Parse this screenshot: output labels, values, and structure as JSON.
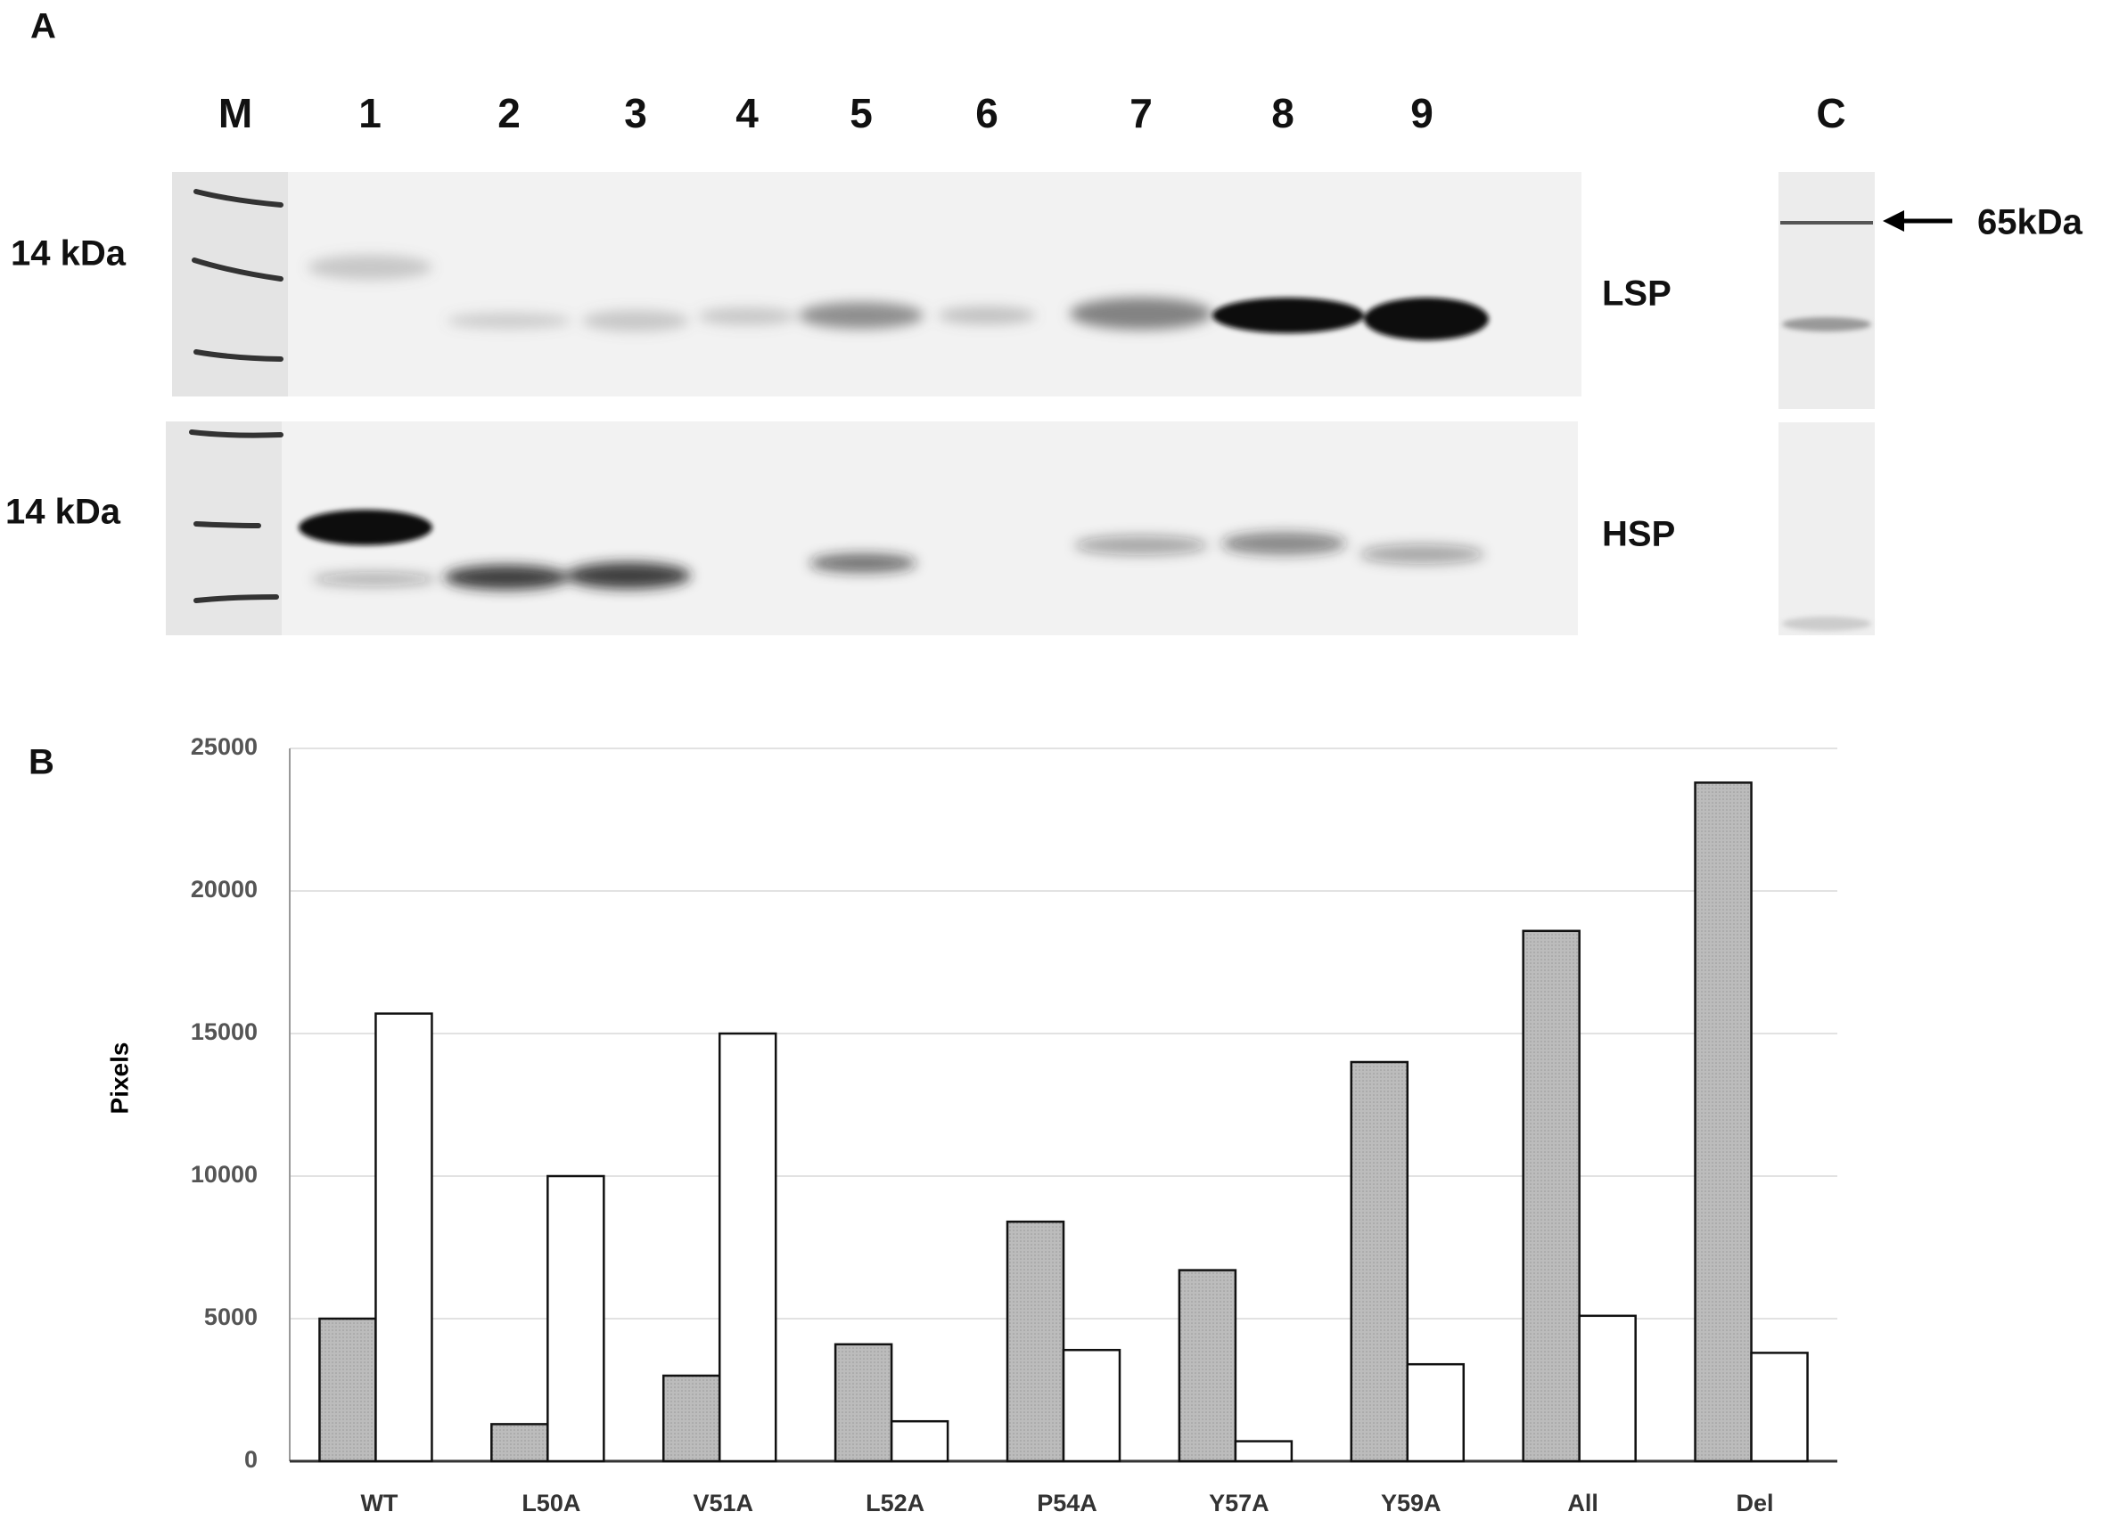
{
  "panel_a": {
    "label": "A",
    "lanes": [
      "M",
      "1",
      "2",
      "3",
      "4",
      "5",
      "6",
      "7",
      "8",
      "9",
      "C"
    ],
    "marker_labels": [
      "14 kDa",
      "14 kDa"
    ],
    "blot_labels": [
      "LSP",
      "HSP"
    ],
    "control_label": "65kDa"
  },
  "chart_data": {
    "type": "bar",
    "panel_label": "B",
    "ylabel": "Pixels",
    "categories": [
      "WT",
      "L50A",
      "V51A",
      "L52A",
      "P54A",
      "Y57A",
      "Y59A",
      "All",
      "Del"
    ],
    "series": [
      {
        "color": "#b9b9b9",
        "values": [
          5000,
          1300,
          3000,
          4100,
          8400,
          6700,
          14000,
          18600,
          23800
        ]
      },
      {
        "color": "#ffffff",
        "values": [
          15700,
          10000,
          15000,
          1400,
          3900,
          700,
          3400,
          5100,
          3800
        ]
      }
    ],
    "ylim": [
      0,
      25000
    ],
    "yticks": [
      0,
      5000,
      10000,
      15000,
      20000,
      25000
    ],
    "grid": true
  }
}
